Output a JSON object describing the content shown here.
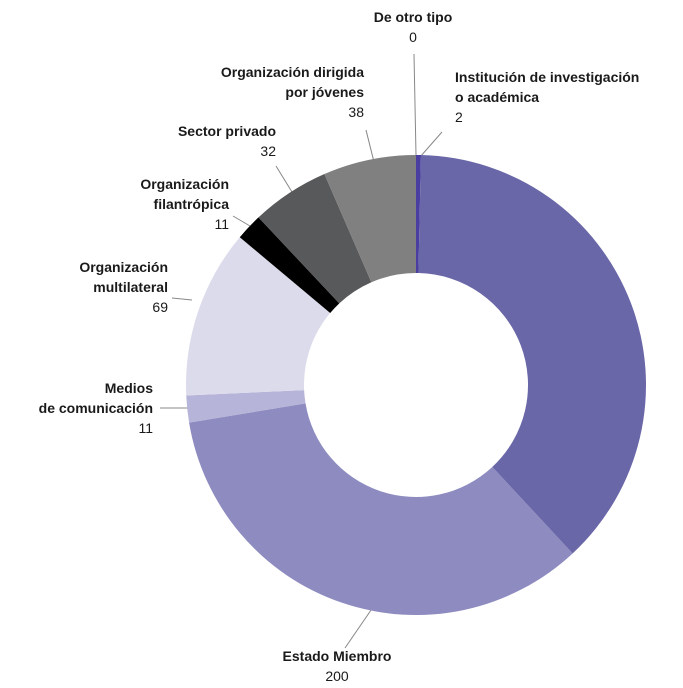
{
  "chart_data": {
    "type": "donut",
    "categories": [
      [
        "De otro tipo"
      ],
      [
        "Institución de investigación",
        "o académica"
      ],
      null,
      [
        "Estado Miembro"
      ],
      [
        "Medios",
        "de comunicación"
      ],
      [
        "Organización",
        "multilateral"
      ],
      [
        "Organización",
        "filantrópica"
      ],
      [
        "Sector privado"
      ],
      [
        "Organización dirigida",
        "por jóvenes"
      ]
    ],
    "values": [
      0,
      2,
      220,
      200,
      11,
      69,
      11,
      32,
      38
    ],
    "colors": [
      "#5b4fa8",
      "#4a3fa0",
      "#6a67a8",
      "#8d8bbf",
      "#b6b4d8",
      "#dcdbec",
      "#000000",
      "#58595b",
      "#808080"
    ]
  }
}
